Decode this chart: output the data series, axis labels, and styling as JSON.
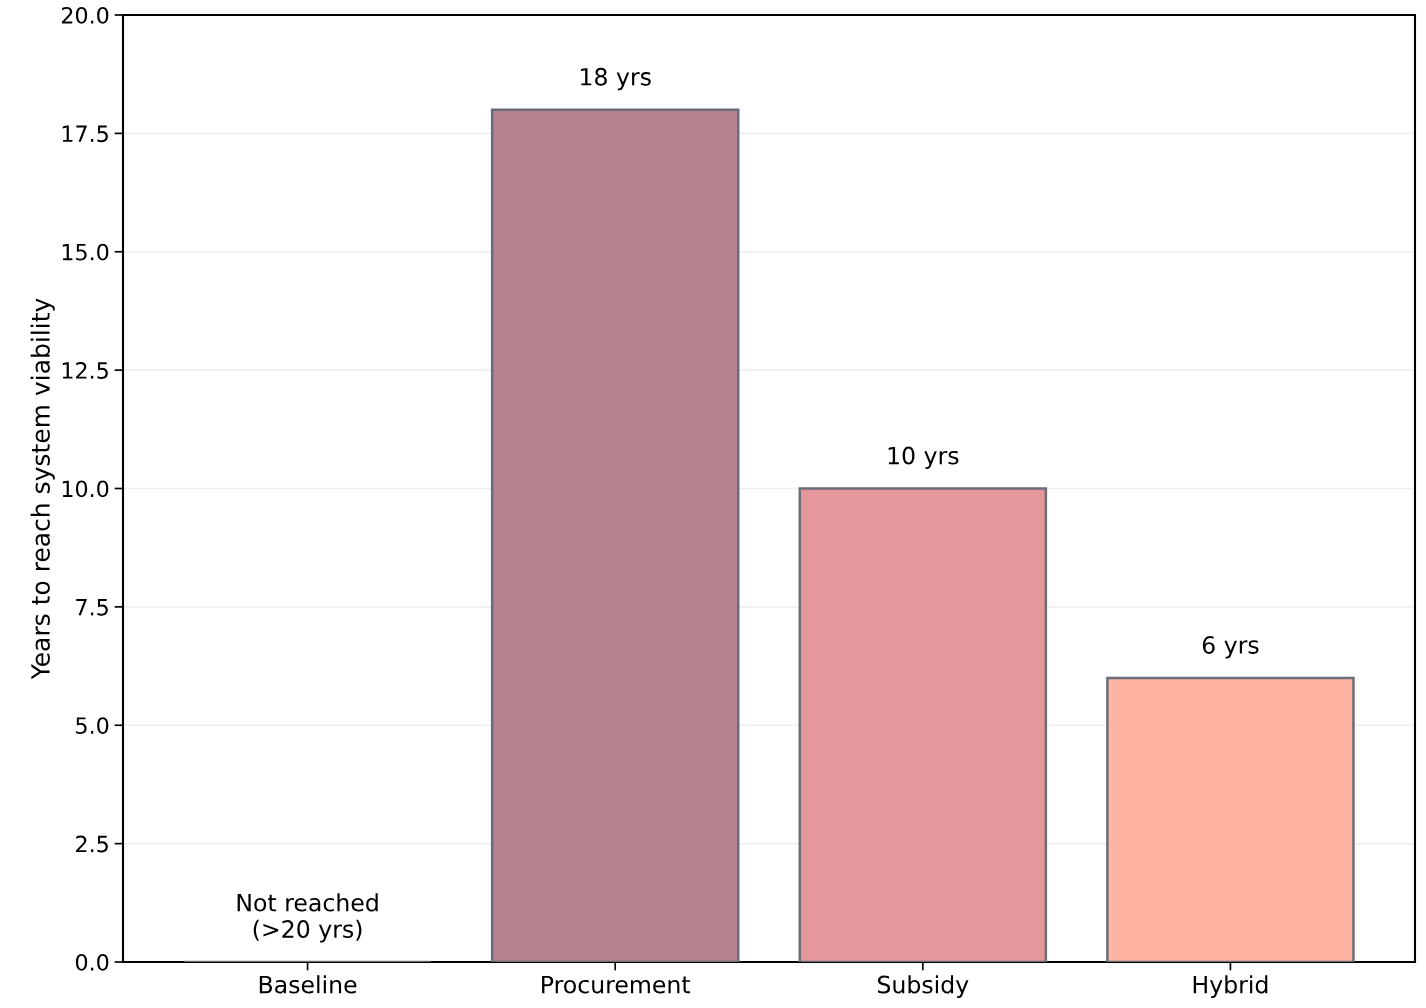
{
  "chart_data": {
    "type": "bar",
    "ylabel": "Years to reach system viability",
    "categories": [
      "Baseline",
      "Procurement",
      "Subsidy",
      "Hybrid"
    ],
    "values": [
      0,
      18,
      10,
      6
    ],
    "colors": [
      "#6d6875",
      "#b5838d",
      "#e5989b",
      "#ffb4a2"
    ],
    "value_labels": [
      "Not reached\n(>20 yrs)",
      "18 yrs",
      "10 yrs",
      "6 yrs"
    ],
    "ylim": [
      0,
      20
    ],
    "yticks": [
      {
        "value": 0,
        "label": "0.0"
      },
      {
        "value": 2.5,
        "label": "2.5"
      },
      {
        "value": 5,
        "label": "5.0"
      },
      {
        "value": 7.5,
        "label": "7.5"
      },
      {
        "value": 10,
        "label": "10.0"
      },
      {
        "value": 12.5,
        "label": "12.5"
      },
      {
        "value": 15,
        "label": "15.0"
      },
      {
        "value": 17.5,
        "label": "17.5"
      },
      {
        "value": 20,
        "label": "20.0"
      }
    ],
    "grid": "y"
  }
}
